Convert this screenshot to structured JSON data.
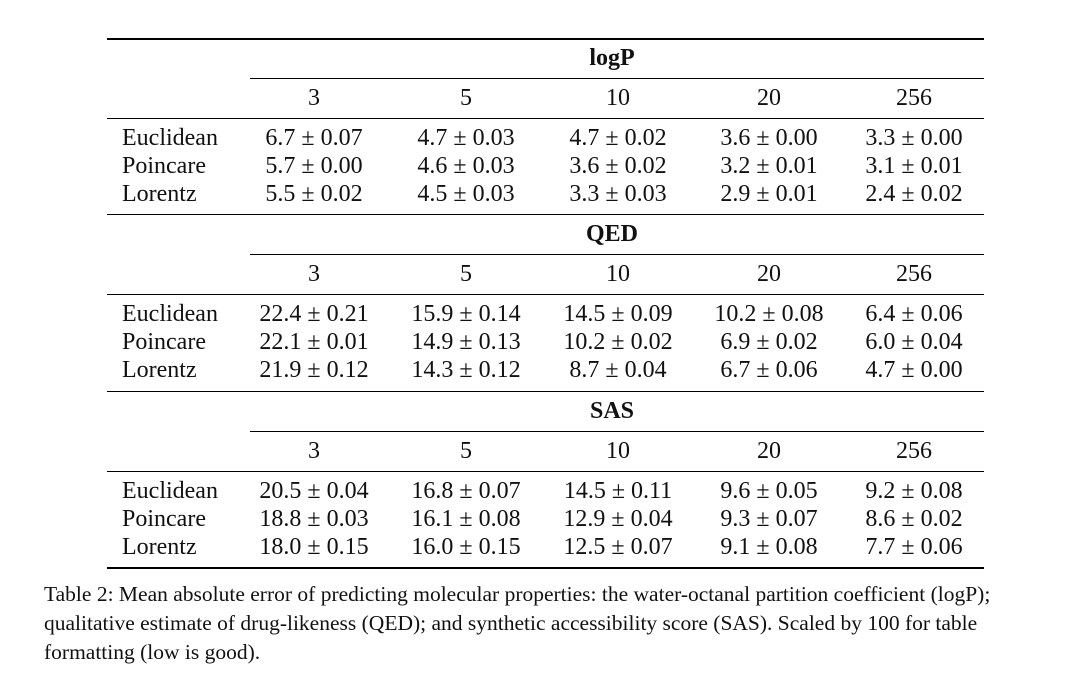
{
  "columns": [
    "3",
    "5",
    "10",
    "20",
    "256"
  ],
  "sections": [
    {
      "title": "logP",
      "rows": [
        {
          "method": "Euclidean",
          "values": [
            "6.7 ± 0.07",
            "4.7 ± 0.03",
            "4.7 ± 0.02",
            "3.6 ± 0.00",
            "3.3 ± 0.00"
          ]
        },
        {
          "method": "Poincare",
          "values": [
            "5.7 ± 0.00",
            "4.6 ± 0.03",
            "3.6 ± 0.02",
            "3.2 ± 0.01",
            "3.1 ± 0.01"
          ]
        },
        {
          "method": "Lorentz",
          "values": [
            "5.5 ± 0.02",
            "4.5 ± 0.03",
            "3.3 ± 0.03",
            "2.9 ± 0.01",
            "2.4 ± 0.02"
          ]
        }
      ]
    },
    {
      "title": "QED",
      "rows": [
        {
          "method": "Euclidean",
          "values": [
            "22.4 ± 0.21",
            "15.9 ± 0.14",
            "14.5 ± 0.09",
            "10.2 ± 0.08",
            "6.4 ± 0.06"
          ]
        },
        {
          "method": "Poincare",
          "values": [
            "22.1 ± 0.01",
            "14.9 ± 0.13",
            "10.2 ± 0.02",
            "6.9 ± 0.02",
            "6.0 ± 0.04"
          ]
        },
        {
          "method": "Lorentz",
          "values": [
            "21.9 ± 0.12",
            "14.3 ± 0.12",
            "8.7 ± 0.04",
            "6.7 ± 0.06",
            "4.7 ± 0.00"
          ]
        }
      ]
    },
    {
      "title": "SAS",
      "rows": [
        {
          "method": "Euclidean",
          "values": [
            "20.5 ± 0.04",
            "16.8 ± 0.07",
            "14.5 ± 0.11",
            "9.6 ± 0.05",
            "9.2 ± 0.08"
          ]
        },
        {
          "method": "Poincare",
          "values": [
            "18.8 ± 0.03",
            "16.1 ± 0.08",
            "12.9 ± 0.04",
            "9.3 ± 0.07",
            "8.6 ± 0.02"
          ]
        },
        {
          "method": "Lorentz",
          "values": [
            "18.0 ± 0.15",
            "16.0 ± 0.15",
            "12.5 ± 0.07",
            "9.1 ± 0.08",
            "7.7 ± 0.06"
          ]
        }
      ]
    }
  ],
  "caption": "Table 2: Mean absolute error of predicting molecular properties: the water-octanal partition coefficient (logP); qualitative estimate of drug-likeness (QED); and synthetic accessibility score (SAS). Scaled by 100 for table formatting (low is good)."
}
